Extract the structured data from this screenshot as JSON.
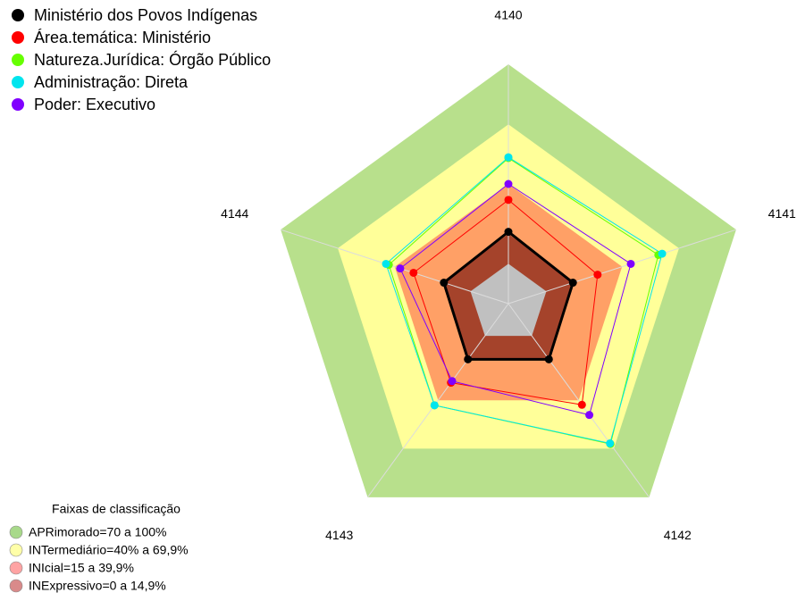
{
  "chart_data": {
    "type": "radar",
    "categories": [
      "4140",
      "4141",
      "4142",
      "4143",
      "4144"
    ],
    "rlim": [
      -20,
      100
    ],
    "series": [
      {
        "name": "Ministério dos Povos Indígenas",
        "color": "#000000",
        "values": [
          16,
          14,
          14.5,
          14.5,
          14
        ]
      },
      {
        "name": "Área.temática: Ministério",
        "color": "#ff0000",
        "values": [
          32,
          27,
          42.7,
          29,
          30
        ]
      },
      {
        "name": "Natureza.Jurídica: Órgão Público",
        "color": "#66ff00",
        "values": [
          53,
          59,
          67,
          43,
          43
        ]
      },
      {
        "name": "Administração: Direta",
        "color": "#00e5ee",
        "values": [
          53.4,
          61,
          66.6,
          43,
          44.5
        ]
      },
      {
        "name": "Poder: Executivo",
        "color": "#8000ff",
        "values": [
          40,
          44.5,
          49,
          28,
          37
        ]
      }
    ],
    "bands": {
      "title": "Faixas de classificação",
      "items": [
        {
          "label": "APRimorado=70 a 100%",
          "from": 70,
          "to": 100,
          "color": "#b8e08c",
          "legend_color": "#a8d98a"
        },
        {
          "label": "INTermediário=40% a 69,9%",
          "from": 40,
          "to": 69.9,
          "color": "#ffff99",
          "legend_color": "#ffffa8"
        },
        {
          "label": "INIcial=15 a 39,9%",
          "from": 15,
          "to": 39.9,
          "color": "#ffa066",
          "legend_color": "#ffa3a3"
        },
        {
          "label": "INExpressivo=0 a 14,9%",
          "from": 0,
          "to": 14.9,
          "color": "#a5432b",
          "legend_color": "#d98a8a"
        }
      ]
    }
  }
}
